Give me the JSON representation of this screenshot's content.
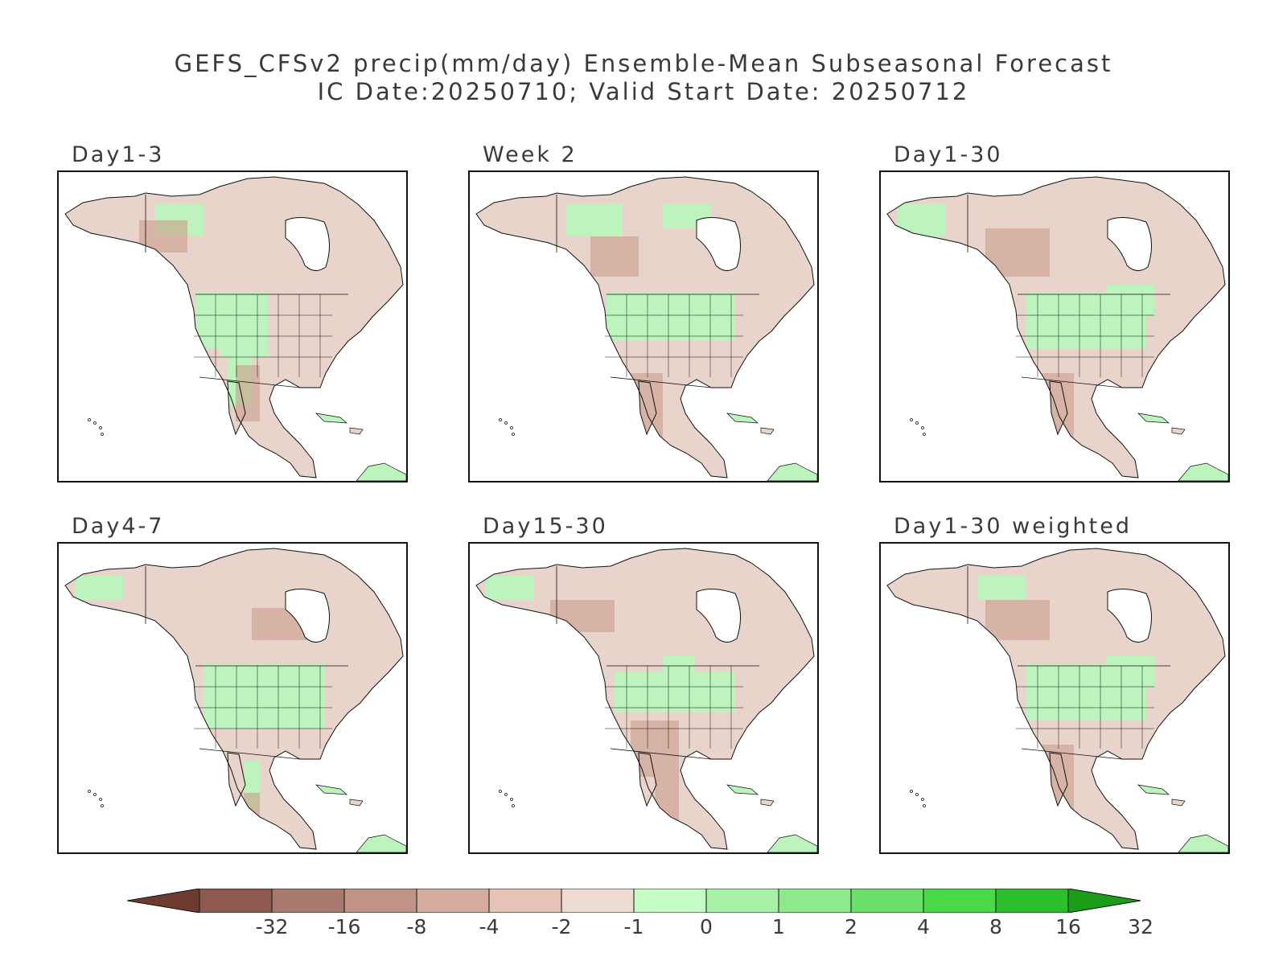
{
  "title": {
    "line1": "GEFS_CFSv2 precip(mm/day) Ensemble-Mean Subseasonal Forecast",
    "line2": "IC Date:20250710; Valid Start Date: 20250712"
  },
  "panels": [
    {
      "label": "Day1-3",
      "region": "North America"
    },
    {
      "label": "Week 2",
      "region": "North America"
    },
    {
      "label": "Day1-30",
      "region": "North America"
    },
    {
      "label": "Day4-7",
      "region": "North America"
    },
    {
      "label": "Day15-30",
      "region": "North America"
    },
    {
      "label": "Day1-30 weighted",
      "region": "North America"
    }
  ],
  "colorbar": {
    "labels": [
      "-32",
      "-16",
      "-8",
      "-4",
      "-2",
      "-1",
      "0",
      "1",
      "2",
      "4",
      "8",
      "16",
      "32"
    ],
    "colors": [
      "#6e3b31",
      "#8e5a4f",
      "#a87a6e",
      "#c09486",
      "#d4ad9f",
      "#e5c4b7",
      "#eddbd2",
      "#c5fbc5",
      "#a8f2a8",
      "#8ee88e",
      "#6adf6a",
      "#47d947",
      "#2bbf2b",
      "#1a9e1a"
    ],
    "arrow_left_color": "#6e3b31",
    "arrow_right_color": "#1a9e1a"
  },
  "palette": {
    "land_dry": "#e8d4ca",
    "land_wet": "#bdf3bd",
    "land_wet_strong": "#8ee88e",
    "land_dry_strong": "#c99c8c",
    "outline": "#111111",
    "ocean": "#ffffff"
  }
}
